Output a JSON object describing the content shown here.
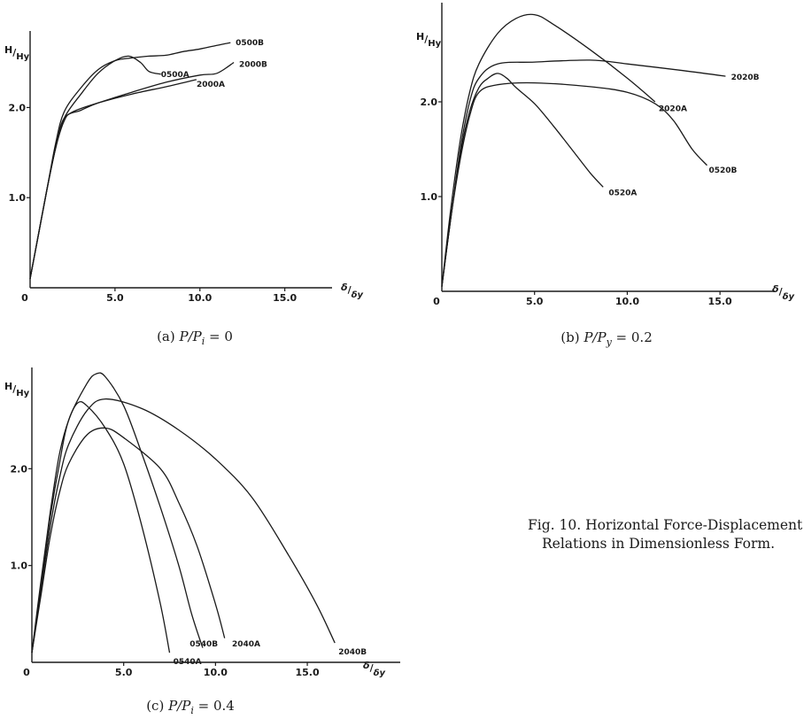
{
  "figure_caption": {
    "line1": "Fig. 10.  Horizontal Force-Displacement",
    "line2": "Relations in Dimensionless Form."
  },
  "chart_data": [
    {
      "type": "line",
      "caption": "(a)  P/P_i = 0",
      "ylabel": "H/Hy",
      "xlabel": "δ/δy",
      "xlim": [
        0,
        17
      ],
      "ylim": [
        0,
        2.8
      ],
      "xticks": [
        {
          "v": 0,
          "label": "0"
        },
        {
          "v": 5,
          "label": "5.0"
        },
        {
          "v": 10,
          "label": "10.0"
        },
        {
          "v": 15,
          "label": "15.0"
        }
      ],
      "yticks": [
        {
          "v": 1.0,
          "label": "1.0"
        },
        {
          "v": 2.0,
          "label": "2.0"
        }
      ],
      "series": [
        {
          "name": "0500B",
          "points": [
            [
              0,
              0.1
            ],
            [
              0.5,
              0.6
            ],
            [
              1,
              1.1
            ],
            [
              1.5,
              1.6
            ],
            [
              2,
              1.95
            ],
            [
              3,
              2.22
            ],
            [
              4,
              2.42
            ],
            [
              5,
              2.52
            ],
            [
              6,
              2.55
            ],
            [
              7,
              2.57
            ],
            [
              8,
              2.58
            ],
            [
              9,
              2.62
            ],
            [
              10,
              2.65
            ],
            [
              11,
              2.69
            ],
            [
              11.8,
              2.72
            ]
          ]
        },
        {
          "name": "0500A",
          "points": [
            [
              0,
              0.1
            ],
            [
              0.5,
              0.6
            ],
            [
              1,
              1.1
            ],
            [
              1.5,
              1.55
            ],
            [
              2,
              1.88
            ],
            [
              3,
              2.15
            ],
            [
              4,
              2.38
            ],
            [
              5,
              2.52
            ],
            [
              5.8,
              2.57
            ],
            [
              6.5,
              2.5
            ],
            [
              7,
              2.4
            ],
            [
              7.7,
              2.37
            ]
          ]
        },
        {
          "name": "2000B",
          "points": [
            [
              0,
              0.1
            ],
            [
              0.5,
              0.6
            ],
            [
              1,
              1.1
            ],
            [
              1.5,
              1.55
            ],
            [
              2,
              1.88
            ],
            [
              3,
              1.97
            ],
            [
              4,
              2.05
            ],
            [
              6,
              2.17
            ],
            [
              8,
              2.28
            ],
            [
              10,
              2.36
            ],
            [
              11,
              2.38
            ],
            [
              12,
              2.5
            ]
          ]
        },
        {
          "name": "2000A",
          "points": [
            [
              0,
              0.1
            ],
            [
              0.5,
              0.6
            ],
            [
              1,
              1.1
            ],
            [
              1.5,
              1.55
            ],
            [
              2,
              1.85
            ],
            [
              2.5,
              1.95
            ],
            [
              4,
              2.05
            ],
            [
              6,
              2.15
            ],
            [
              8,
              2.23
            ],
            [
              9.8,
              2.31
            ]
          ]
        }
      ],
      "annotations": [
        {
          "label": "0500B",
          "x": 12.0,
          "y": 2.73
        },
        {
          "label": "0500A",
          "x": 7.6,
          "y": 2.38
        },
        {
          "label": "2000B",
          "x": 12.2,
          "y": 2.49
        },
        {
          "label": "2000A",
          "x": 9.7,
          "y": 2.27
        }
      ]
    },
    {
      "type": "line",
      "caption": "(b)  P/P_y = 0.2",
      "ylabel": "H/Hy",
      "xlabel": "δ/δy",
      "xlim": [
        0,
        17
      ],
      "ylim": [
        0,
        3.0
      ],
      "xticks": [
        {
          "v": 0,
          "label": "0"
        },
        {
          "v": 5,
          "label": "5.0"
        },
        {
          "v": 10,
          "label": "10.0"
        },
        {
          "v": 15,
          "label": "15.0"
        }
      ],
      "yticks": [
        {
          "v": 1.0,
          "label": "1.0"
        },
        {
          "v": 2.0,
          "label": "2.0"
        }
      ],
      "series": [
        {
          "name": "2020B",
          "points": [
            [
              0,
              0.05
            ],
            [
              0.5,
              0.8
            ],
            [
              1,
              1.5
            ],
            [
              1.5,
              2.0
            ],
            [
              2,
              2.25
            ],
            [
              3,
              2.4
            ],
            [
              5,
              2.42
            ],
            [
              8,
              2.44
            ],
            [
              10,
              2.4
            ],
            [
              13,
              2.33
            ],
            [
              15.3,
              2.27
            ]
          ]
        },
        {
          "name": "2020A",
          "points": [
            [
              0,
              0.05
            ],
            [
              0.5,
              0.9
            ],
            [
              1,
              1.6
            ],
            [
              1.5,
              2.1
            ],
            [
              2,
              2.4
            ],
            [
              3,
              2.72
            ],
            [
              4,
              2.88
            ],
            [
              5,
              2.92
            ],
            [
              6,
              2.82
            ],
            [
              8,
              2.55
            ],
            [
              10,
              2.25
            ],
            [
              11.5,
              2.0
            ]
          ]
        },
        {
          "name": "0520B",
          "points": [
            [
              0,
              0.05
            ],
            [
              0.5,
              0.8
            ],
            [
              1,
              1.4
            ],
            [
              1.5,
              1.85
            ],
            [
              2,
              2.1
            ],
            [
              3,
              2.18
            ],
            [
              5,
              2.2
            ],
            [
              8,
              2.16
            ],
            [
              10,
              2.1
            ],
            [
              11.5,
              1.98
            ],
            [
              12.5,
              1.8
            ],
            [
              13.5,
              1.5
            ],
            [
              14.3,
              1.33
            ]
          ]
        },
        {
          "name": "0520A",
          "points": [
            [
              0,
              0.05
            ],
            [
              0.5,
              0.8
            ],
            [
              1,
              1.45
            ],
            [
              1.5,
              1.9
            ],
            [
              2,
              2.15
            ],
            [
              2.5,
              2.25
            ],
            [
              3,
              2.3
            ],
            [
              3.5,
              2.25
            ],
            [
              4,
              2.15
            ],
            [
              5,
              1.98
            ],
            [
              6,
              1.75
            ],
            [
              7,
              1.5
            ],
            [
              8,
              1.25
            ],
            [
              8.7,
              1.1
            ]
          ]
        }
      ],
      "annotations": [
        {
          "label": "2020B",
          "x": 15.5,
          "y": 2.27
        },
        {
          "label": "2020A",
          "x": 11.6,
          "y": 1.94
        },
        {
          "label": "0520B",
          "x": 14.3,
          "y": 1.29
        },
        {
          "label": "0520A",
          "x": 8.9,
          "y": 1.05
        }
      ]
    },
    {
      "type": "line",
      "caption": "(c)  P/P_i = 0.4",
      "ylabel": "H/Hy",
      "xlabel": "δ/δy",
      "xlim": [
        0,
        19
      ],
      "ylim": [
        0,
        3.0
      ],
      "xticks": [
        {
          "v": 0,
          "label": "0"
        },
        {
          "v": 5,
          "label": "5.0"
        },
        {
          "v": 10,
          "label": "10.0"
        },
        {
          "v": 15,
          "label": "15.0"
        }
      ],
      "yticks": [
        {
          "v": 1.0,
          "label": "1.0"
        },
        {
          "v": 2.0,
          "label": "2.0"
        }
      ],
      "series": [
        {
          "name": "0540A",
          "points": [
            [
              0,
              0.1
            ],
            [
              0.5,
              0.85
            ],
            [
              1,
              1.55
            ],
            [
              1.5,
              2.15
            ],
            [
              2,
              2.5
            ],
            [
              2.5,
              2.68
            ],
            [
              3,
              2.65
            ],
            [
              4,
              2.42
            ],
            [
              5,
              2.05
            ],
            [
              6,
              1.4
            ],
            [
              7,
              0.6
            ],
            [
              7.5,
              0.1
            ]
          ]
        },
        {
          "name": "0540B",
          "points": [
            [
              0,
              0.1
            ],
            [
              0.5,
              0.8
            ],
            [
              1,
              1.5
            ],
            [
              1.5,
              2.05
            ],
            [
              2,
              2.5
            ],
            [
              3,
              2.88
            ],
            [
              3.5,
              2.98
            ],
            [
              4,
              2.95
            ],
            [
              5,
              2.65
            ],
            [
              6,
              2.15
            ],
            [
              7,
              1.6
            ],
            [
              8,
              1.0
            ],
            [
              8.7,
              0.5
            ],
            [
              9.3,
              0.15
            ]
          ]
        },
        {
          "name": "2040A",
          "points": [
            [
              0,
              0.1
            ],
            [
              0.5,
              0.7
            ],
            [
              1,
              1.3
            ],
            [
              1.5,
              1.75
            ],
            [
              2,
              2.05
            ],
            [
              3,
              2.35
            ],
            [
              4,
              2.42
            ],
            [
              5,
              2.32
            ],
            [
              7,
              2.0
            ],
            [
              8,
              1.65
            ],
            [
              9,
              1.2
            ],
            [
              10,
              0.6
            ],
            [
              10.5,
              0.25
            ]
          ]
        },
        {
          "name": "2040B",
          "points": [
            [
              0,
              0.1
            ],
            [
              0.5,
              0.75
            ],
            [
              1,
              1.4
            ],
            [
              1.5,
              1.9
            ],
            [
              2,
              2.25
            ],
            [
              3,
              2.6
            ],
            [
              4,
              2.72
            ],
            [
              6,
              2.62
            ],
            [
              8,
              2.4
            ],
            [
              10,
              2.1
            ],
            [
              12,
              1.7
            ],
            [
              14,
              1.1
            ],
            [
              15.5,
              0.6
            ],
            [
              16.5,
              0.2
            ]
          ]
        }
      ],
      "annotations": [
        {
          "label": "0540B",
          "x": 8.5,
          "y": 0.2
        },
        {
          "label": "0540A",
          "x": 7.6,
          "y": 0.02
        },
        {
          "label": "2040A",
          "x": 10.8,
          "y": 0.2
        },
        {
          "label": "2040B",
          "x": 16.6,
          "y": 0.12
        }
      ]
    }
  ]
}
